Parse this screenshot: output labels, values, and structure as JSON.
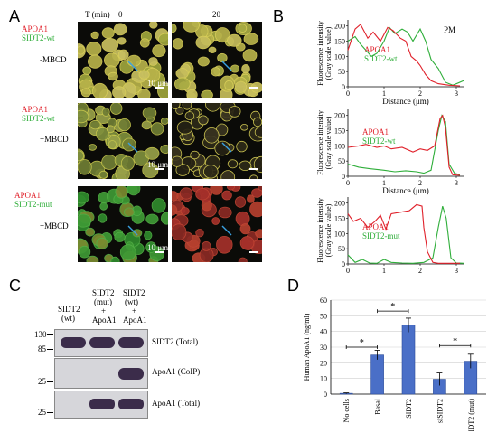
{
  "panelA": {
    "letter": "A",
    "time_header": "T (min)",
    "time_0": "0",
    "time_20": "20",
    "rows": [
      {
        "line1": "APOA1",
        "line2": "SIDT2-wt",
        "treatment": "-MBCD",
        "scale": "10 μm"
      },
      {
        "line1": "APOA1",
        "line2": "SIDT2-wt",
        "treatment": "+MBCD",
        "scale": "10 μm"
      },
      {
        "line1": "APOA1",
        "line2": "SIDT2-mut",
        "treatment": "+MBCD",
        "scale": "10 μm"
      }
    ]
  },
  "panelB": {
    "letter": "B",
    "plots": [
      {
        "tag": "PM",
        "legend1": "APOA1",
        "legend2": "SIDT2-wt"
      },
      {
        "tag": "",
        "legend1": "APOA1",
        "legend2": "SIDT2-wt"
      },
      {
        "tag": "",
        "legend1": "APOA1",
        "legend2": "SIDT2-mut"
      }
    ],
    "ylabel_line1": "Fluorescence intensity",
    "ylabel_line2": "(Gray scale value)",
    "xlabel": "Distance (μm)",
    "yticks": [
      "0",
      "50",
      "100",
      "150",
      "200"
    ],
    "xticks": [
      "0",
      "1",
      "2",
      "3"
    ]
  },
  "panelC": {
    "letter": "C",
    "lanes": [
      {
        "l1": "SIDT2",
        "l2": "(wt)",
        "l3": "",
        "l4": ""
      },
      {
        "l1": "SIDT2",
        "l2": "(mut)",
        "l3": "+",
        "l4": "ApoA1"
      },
      {
        "l1": "SIDT2",
        "l2": "(wt)",
        "l3": "+",
        "l4": "ApoA1"
      }
    ],
    "markers": [
      "130",
      "85",
      "25",
      "25"
    ],
    "blots": [
      "SIDT2 (Total)",
      "ApoA1 (CoIP)",
      "ApoA1 (Total)"
    ]
  },
  "panelD": {
    "letter": "D",
    "chart_data": {
      "type": "bar",
      "categories": [
        "No cells",
        "Basal",
        "SIDT2",
        "siSIDT2",
        "SIDT2 (mut)"
      ],
      "values": [
        0.5,
        25,
        44,
        9.5,
        21
      ],
      "errors": [
        0.3,
        3,
        4.5,
        4,
        4.5
      ],
      "ylabel": "Human ApoA1 (ng/ml)",
      "ylim": [
        0,
        60
      ],
      "yticks": [
        "0",
        "10",
        "20",
        "30",
        "40",
        "50",
        "60"
      ],
      "significance": [
        "*",
        "*",
        "*"
      ],
      "bar_color": "#4a6fc7"
    }
  }
}
